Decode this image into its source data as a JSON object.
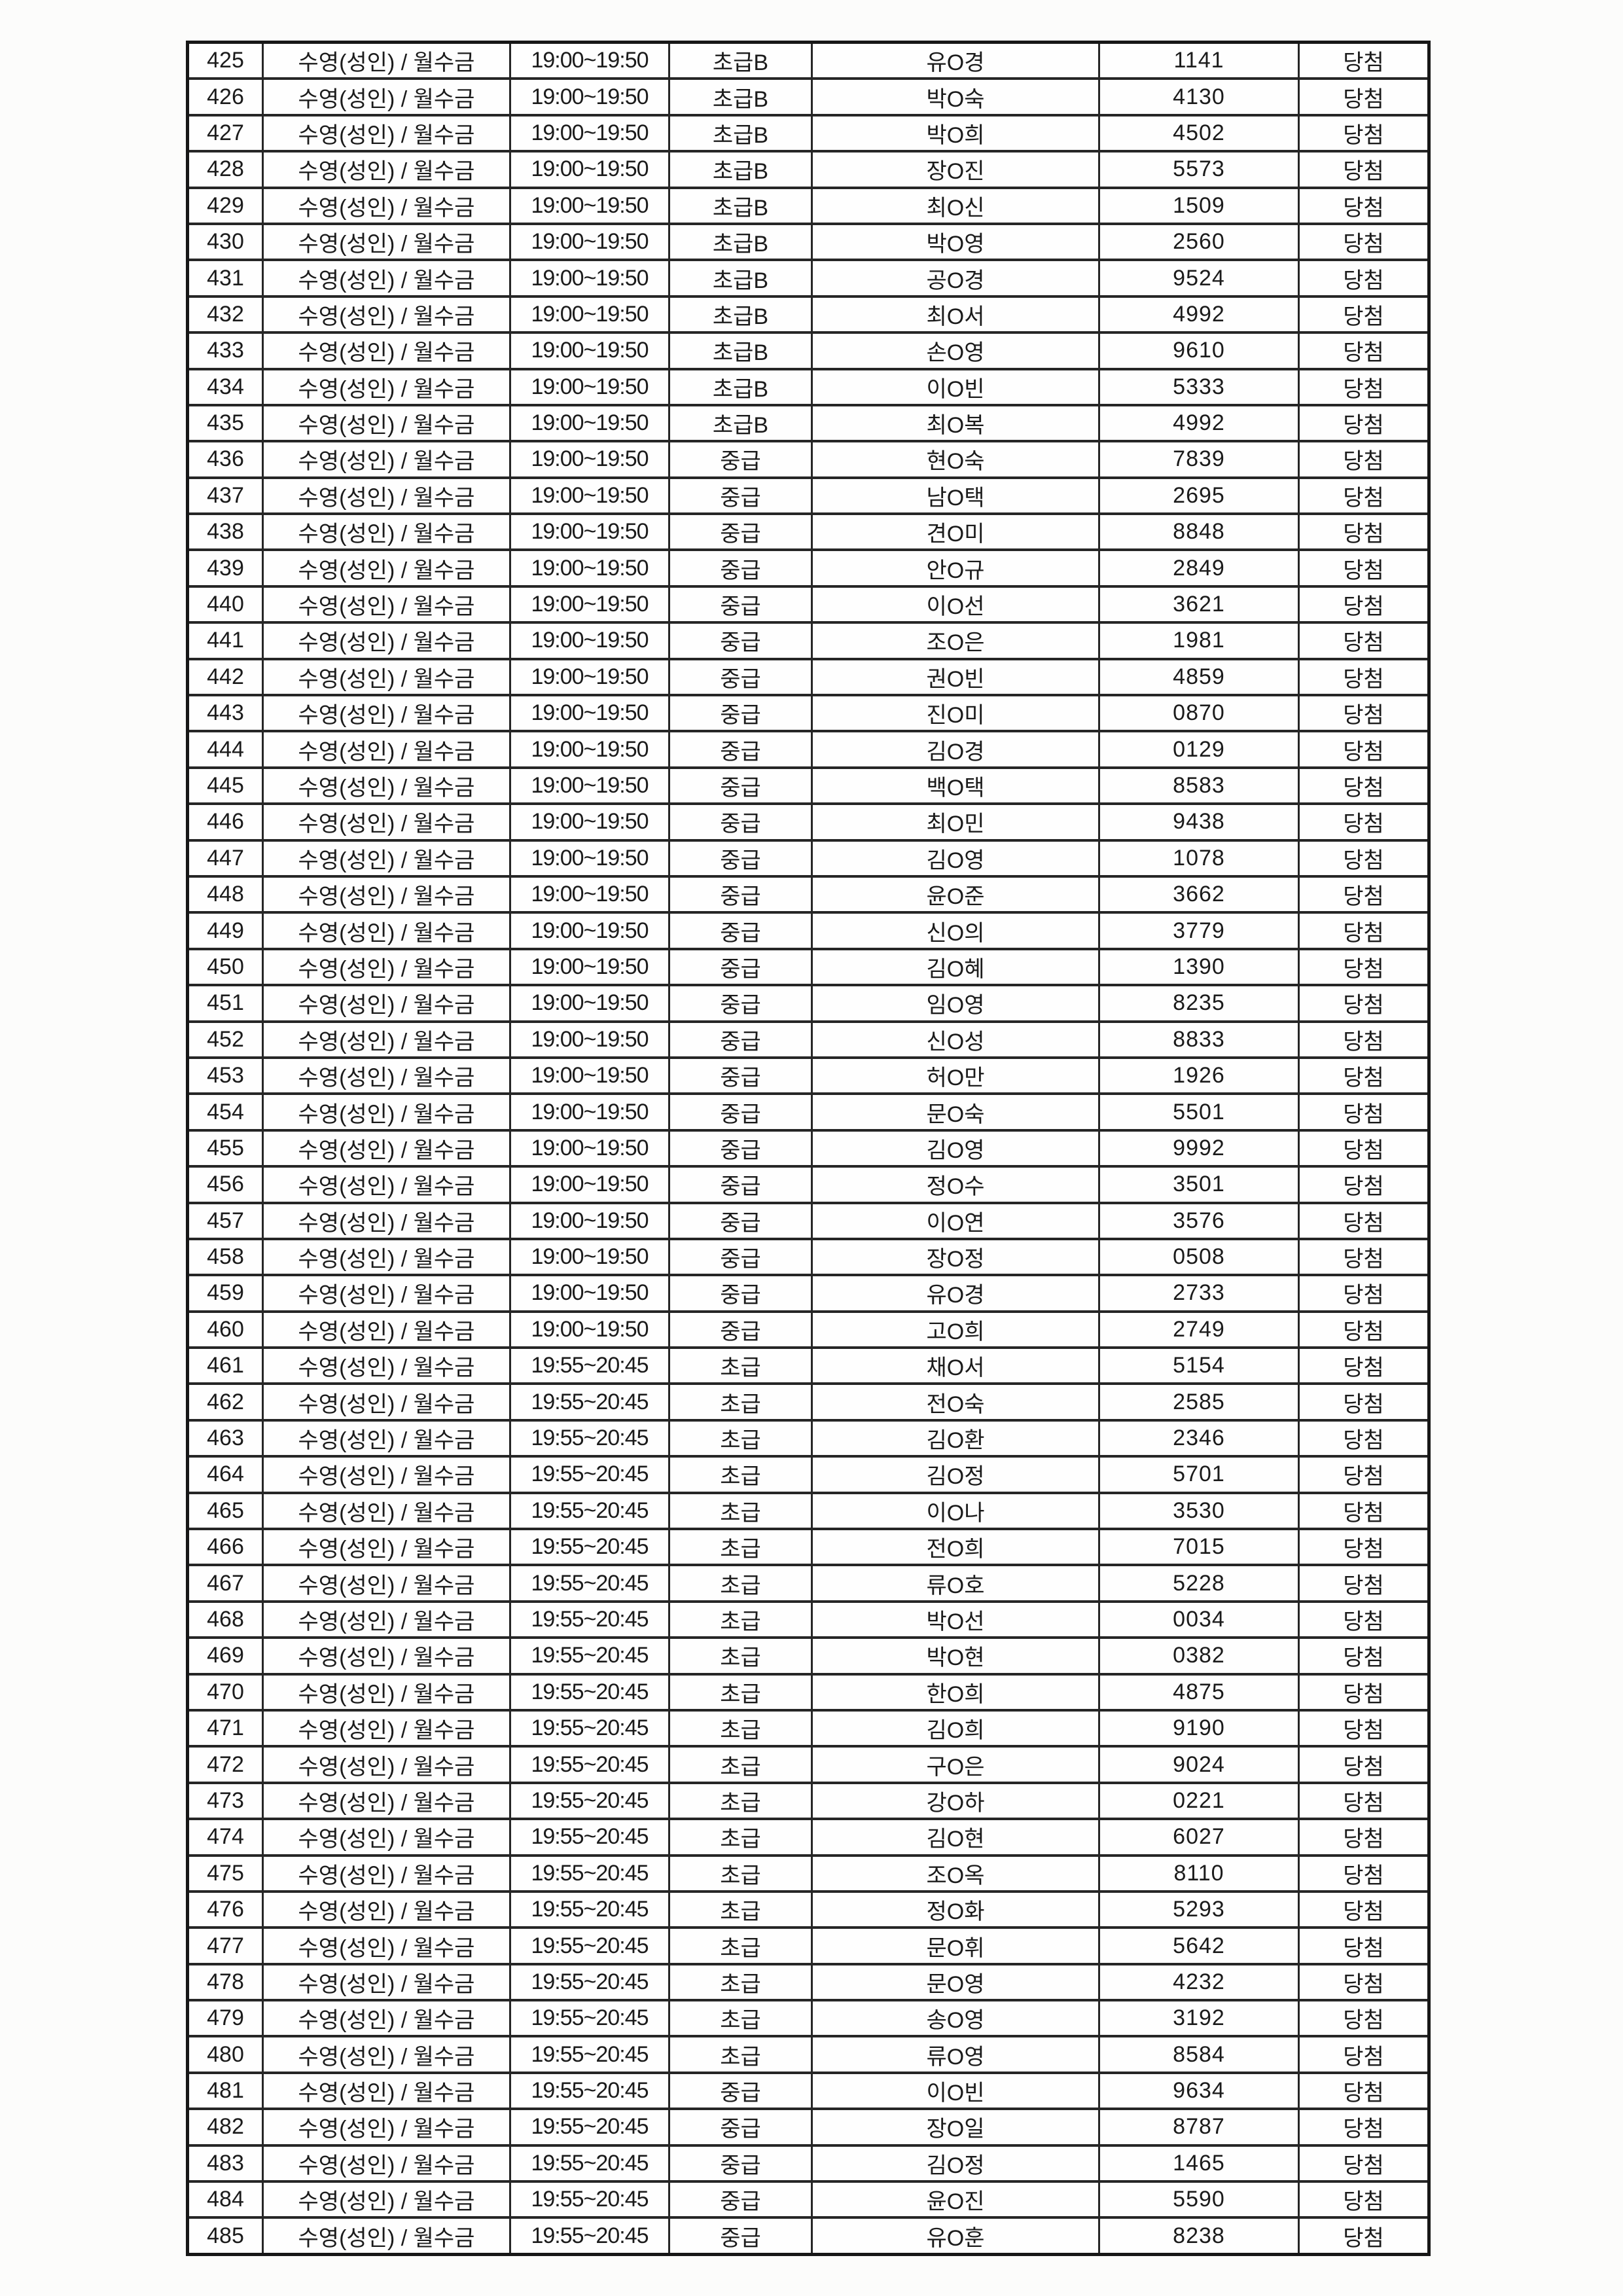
{
  "table": {
    "rows": [
      {
        "no": "425",
        "program": "수영(성인) / 월수금",
        "time": "19:00~19:50",
        "level": "초급B",
        "name": "유O경",
        "number": "1141",
        "result": "당첨"
      },
      {
        "no": "426",
        "program": "수영(성인) / 월수금",
        "time": "19:00~19:50",
        "level": "초급B",
        "name": "박O숙",
        "number": "4130",
        "result": "당첨"
      },
      {
        "no": "427",
        "program": "수영(성인) / 월수금",
        "time": "19:00~19:50",
        "level": "초급B",
        "name": "박O희",
        "number": "4502",
        "result": "당첨"
      },
      {
        "no": "428",
        "program": "수영(성인) / 월수금",
        "time": "19:00~19:50",
        "level": "초급B",
        "name": "장O진",
        "number": "5573",
        "result": "당첨"
      },
      {
        "no": "429",
        "program": "수영(성인) / 월수금",
        "time": "19:00~19:50",
        "level": "초급B",
        "name": "최O신",
        "number": "1509",
        "result": "당첨"
      },
      {
        "no": "430",
        "program": "수영(성인) / 월수금",
        "time": "19:00~19:50",
        "level": "초급B",
        "name": "박O영",
        "number": "2560",
        "result": "당첨"
      },
      {
        "no": "431",
        "program": "수영(성인) / 월수금",
        "time": "19:00~19:50",
        "level": "초급B",
        "name": "공O경",
        "number": "9524",
        "result": "당첨"
      },
      {
        "no": "432",
        "program": "수영(성인) / 월수금",
        "time": "19:00~19:50",
        "level": "초급B",
        "name": "최O서",
        "number": "4992",
        "result": "당첨"
      },
      {
        "no": "433",
        "program": "수영(성인) / 월수금",
        "time": "19:00~19:50",
        "level": "초급B",
        "name": "손O영",
        "number": "9610",
        "result": "당첨"
      },
      {
        "no": "434",
        "program": "수영(성인) / 월수금",
        "time": "19:00~19:50",
        "level": "초급B",
        "name": "이O빈",
        "number": "5333",
        "result": "당첨"
      },
      {
        "no": "435",
        "program": "수영(성인) / 월수금",
        "time": "19:00~19:50",
        "level": "초급B",
        "name": "최O복",
        "number": "4992",
        "result": "당첨"
      },
      {
        "no": "436",
        "program": "수영(성인) / 월수금",
        "time": "19:00~19:50",
        "level": "중급",
        "name": "현O숙",
        "number": "7839",
        "result": "당첨"
      },
      {
        "no": "437",
        "program": "수영(성인) / 월수금",
        "time": "19:00~19:50",
        "level": "중급",
        "name": "남O택",
        "number": "2695",
        "result": "당첨"
      },
      {
        "no": "438",
        "program": "수영(성인) / 월수금",
        "time": "19:00~19:50",
        "level": "중급",
        "name": "견O미",
        "number": "8848",
        "result": "당첨"
      },
      {
        "no": "439",
        "program": "수영(성인) / 월수금",
        "time": "19:00~19:50",
        "level": "중급",
        "name": "안O규",
        "number": "2849",
        "result": "당첨"
      },
      {
        "no": "440",
        "program": "수영(성인) / 월수금",
        "time": "19:00~19:50",
        "level": "중급",
        "name": "이O선",
        "number": "3621",
        "result": "당첨"
      },
      {
        "no": "441",
        "program": "수영(성인) / 월수금",
        "time": "19:00~19:50",
        "level": "중급",
        "name": "조O은",
        "number": "1981",
        "result": "당첨"
      },
      {
        "no": "442",
        "program": "수영(성인) / 월수금",
        "time": "19:00~19:50",
        "level": "중급",
        "name": "권O빈",
        "number": "4859",
        "result": "당첨"
      },
      {
        "no": "443",
        "program": "수영(성인) / 월수금",
        "time": "19:00~19:50",
        "level": "중급",
        "name": "진O미",
        "number": "0870",
        "result": "당첨"
      },
      {
        "no": "444",
        "program": "수영(성인) / 월수금",
        "time": "19:00~19:50",
        "level": "중급",
        "name": "김O경",
        "number": "0129",
        "result": "당첨"
      },
      {
        "no": "445",
        "program": "수영(성인) / 월수금",
        "time": "19:00~19:50",
        "level": "중급",
        "name": "백O택",
        "number": "8583",
        "result": "당첨"
      },
      {
        "no": "446",
        "program": "수영(성인) / 월수금",
        "time": "19:00~19:50",
        "level": "중급",
        "name": "최O민",
        "number": "9438",
        "result": "당첨"
      },
      {
        "no": "447",
        "program": "수영(성인) / 월수금",
        "time": "19:00~19:50",
        "level": "중급",
        "name": "김O영",
        "number": "1078",
        "result": "당첨"
      },
      {
        "no": "448",
        "program": "수영(성인) / 월수금",
        "time": "19:00~19:50",
        "level": "중급",
        "name": "윤O준",
        "number": "3662",
        "result": "당첨"
      },
      {
        "no": "449",
        "program": "수영(성인) / 월수금",
        "time": "19:00~19:50",
        "level": "중급",
        "name": "신O의",
        "number": "3779",
        "result": "당첨"
      },
      {
        "no": "450",
        "program": "수영(성인) / 월수금",
        "time": "19:00~19:50",
        "level": "중급",
        "name": "김O혜",
        "number": "1390",
        "result": "당첨"
      },
      {
        "no": "451",
        "program": "수영(성인) / 월수금",
        "time": "19:00~19:50",
        "level": "중급",
        "name": "임O영",
        "number": "8235",
        "result": "당첨"
      },
      {
        "no": "452",
        "program": "수영(성인) / 월수금",
        "time": "19:00~19:50",
        "level": "중급",
        "name": "신O성",
        "number": "8833",
        "result": "당첨"
      },
      {
        "no": "453",
        "program": "수영(성인) / 월수금",
        "time": "19:00~19:50",
        "level": "중급",
        "name": "허O만",
        "number": "1926",
        "result": "당첨"
      },
      {
        "no": "454",
        "program": "수영(성인) / 월수금",
        "time": "19:00~19:50",
        "level": "중급",
        "name": "문O숙",
        "number": "5501",
        "result": "당첨"
      },
      {
        "no": "455",
        "program": "수영(성인) / 월수금",
        "time": "19:00~19:50",
        "level": "중급",
        "name": "김O영",
        "number": "9992",
        "result": "당첨"
      },
      {
        "no": "456",
        "program": "수영(성인) / 월수금",
        "time": "19:00~19:50",
        "level": "중급",
        "name": "정O수",
        "number": "3501",
        "result": "당첨"
      },
      {
        "no": "457",
        "program": "수영(성인) / 월수금",
        "time": "19:00~19:50",
        "level": "중급",
        "name": "이O연",
        "number": "3576",
        "result": "당첨"
      },
      {
        "no": "458",
        "program": "수영(성인) / 월수금",
        "time": "19:00~19:50",
        "level": "중급",
        "name": "장O정",
        "number": "0508",
        "result": "당첨"
      },
      {
        "no": "459",
        "program": "수영(성인) / 월수금",
        "time": "19:00~19:50",
        "level": "중급",
        "name": "유O경",
        "number": "2733",
        "result": "당첨"
      },
      {
        "no": "460",
        "program": "수영(성인) / 월수금",
        "time": "19:00~19:50",
        "level": "중급",
        "name": "고O희",
        "number": "2749",
        "result": "당첨"
      },
      {
        "no": "461",
        "program": "수영(성인) / 월수금",
        "time": "19:55~20:45",
        "level": "초급",
        "name": "채O서",
        "number": "5154",
        "result": "당첨"
      },
      {
        "no": "462",
        "program": "수영(성인) / 월수금",
        "time": "19:55~20:45",
        "level": "초급",
        "name": "전O숙",
        "number": "2585",
        "result": "당첨"
      },
      {
        "no": "463",
        "program": "수영(성인) / 월수금",
        "time": "19:55~20:45",
        "level": "초급",
        "name": "김O환",
        "number": "2346",
        "result": "당첨"
      },
      {
        "no": "464",
        "program": "수영(성인) / 월수금",
        "time": "19:55~20:45",
        "level": "초급",
        "name": "김O정",
        "number": "5701",
        "result": "당첨"
      },
      {
        "no": "465",
        "program": "수영(성인) / 월수금",
        "time": "19:55~20:45",
        "level": "초급",
        "name": "이O나",
        "number": "3530",
        "result": "당첨"
      },
      {
        "no": "466",
        "program": "수영(성인) / 월수금",
        "time": "19:55~20:45",
        "level": "초급",
        "name": "전O희",
        "number": "7015",
        "result": "당첨"
      },
      {
        "no": "467",
        "program": "수영(성인) / 월수금",
        "time": "19:55~20:45",
        "level": "초급",
        "name": "류O호",
        "number": "5228",
        "result": "당첨"
      },
      {
        "no": "468",
        "program": "수영(성인) / 월수금",
        "time": "19:55~20:45",
        "level": "초급",
        "name": "박O선",
        "number": "0034",
        "result": "당첨"
      },
      {
        "no": "469",
        "program": "수영(성인) / 월수금",
        "time": "19:55~20:45",
        "level": "초급",
        "name": "박O현",
        "number": "0382",
        "result": "당첨"
      },
      {
        "no": "470",
        "program": "수영(성인) / 월수금",
        "time": "19:55~20:45",
        "level": "초급",
        "name": "한O희",
        "number": "4875",
        "result": "당첨"
      },
      {
        "no": "471",
        "program": "수영(성인) / 월수금",
        "time": "19:55~20:45",
        "level": "초급",
        "name": "김O희",
        "number": "9190",
        "result": "당첨"
      },
      {
        "no": "472",
        "program": "수영(성인) / 월수금",
        "time": "19:55~20:45",
        "level": "초급",
        "name": "구O은",
        "number": "9024",
        "result": "당첨"
      },
      {
        "no": "473",
        "program": "수영(성인) / 월수금",
        "time": "19:55~20:45",
        "level": "초급",
        "name": "강O하",
        "number": "0221",
        "result": "당첨"
      },
      {
        "no": "474",
        "program": "수영(성인) / 월수금",
        "time": "19:55~20:45",
        "level": "초급",
        "name": "김O현",
        "number": "6027",
        "result": "당첨"
      },
      {
        "no": "475",
        "program": "수영(성인) / 월수금",
        "time": "19:55~20:45",
        "level": "초급",
        "name": "조O옥",
        "number": "8110",
        "result": "당첨"
      },
      {
        "no": "476",
        "program": "수영(성인) / 월수금",
        "time": "19:55~20:45",
        "level": "초급",
        "name": "정O화",
        "number": "5293",
        "result": "당첨"
      },
      {
        "no": "477",
        "program": "수영(성인) / 월수금",
        "time": "19:55~20:45",
        "level": "초급",
        "name": "문O휘",
        "number": "5642",
        "result": "당첨"
      },
      {
        "no": "478",
        "program": "수영(성인) / 월수금",
        "time": "19:55~20:45",
        "level": "초급",
        "name": "문O영",
        "number": "4232",
        "result": "당첨"
      },
      {
        "no": "479",
        "program": "수영(성인) / 월수금",
        "time": "19:55~20:45",
        "level": "초급",
        "name": "송O영",
        "number": "3192",
        "result": "당첨"
      },
      {
        "no": "480",
        "program": "수영(성인) / 월수금",
        "time": "19:55~20:45",
        "level": "초급",
        "name": "류O영",
        "number": "8584",
        "result": "당첨"
      },
      {
        "no": "481",
        "program": "수영(성인) / 월수금",
        "time": "19:55~20:45",
        "level": "중급",
        "name": "이O빈",
        "number": "9634",
        "result": "당첨"
      },
      {
        "no": "482",
        "program": "수영(성인) / 월수금",
        "time": "19:55~20:45",
        "level": "중급",
        "name": "장O일",
        "number": "8787",
        "result": "당첨"
      },
      {
        "no": "483",
        "program": "수영(성인) / 월수금",
        "time": "19:55~20:45",
        "level": "중급",
        "name": "김O정",
        "number": "1465",
        "result": "당첨"
      },
      {
        "no": "484",
        "program": "수영(성인) / 월수금",
        "time": "19:55~20:45",
        "level": "중급",
        "name": "윤O진",
        "number": "5590",
        "result": "당첨"
      },
      {
        "no": "485",
        "program": "수영(성인) / 월수금",
        "time": "19:55~20:45",
        "level": "중급",
        "name": "유O훈",
        "number": "8238",
        "result": "당첨"
      }
    ]
  }
}
